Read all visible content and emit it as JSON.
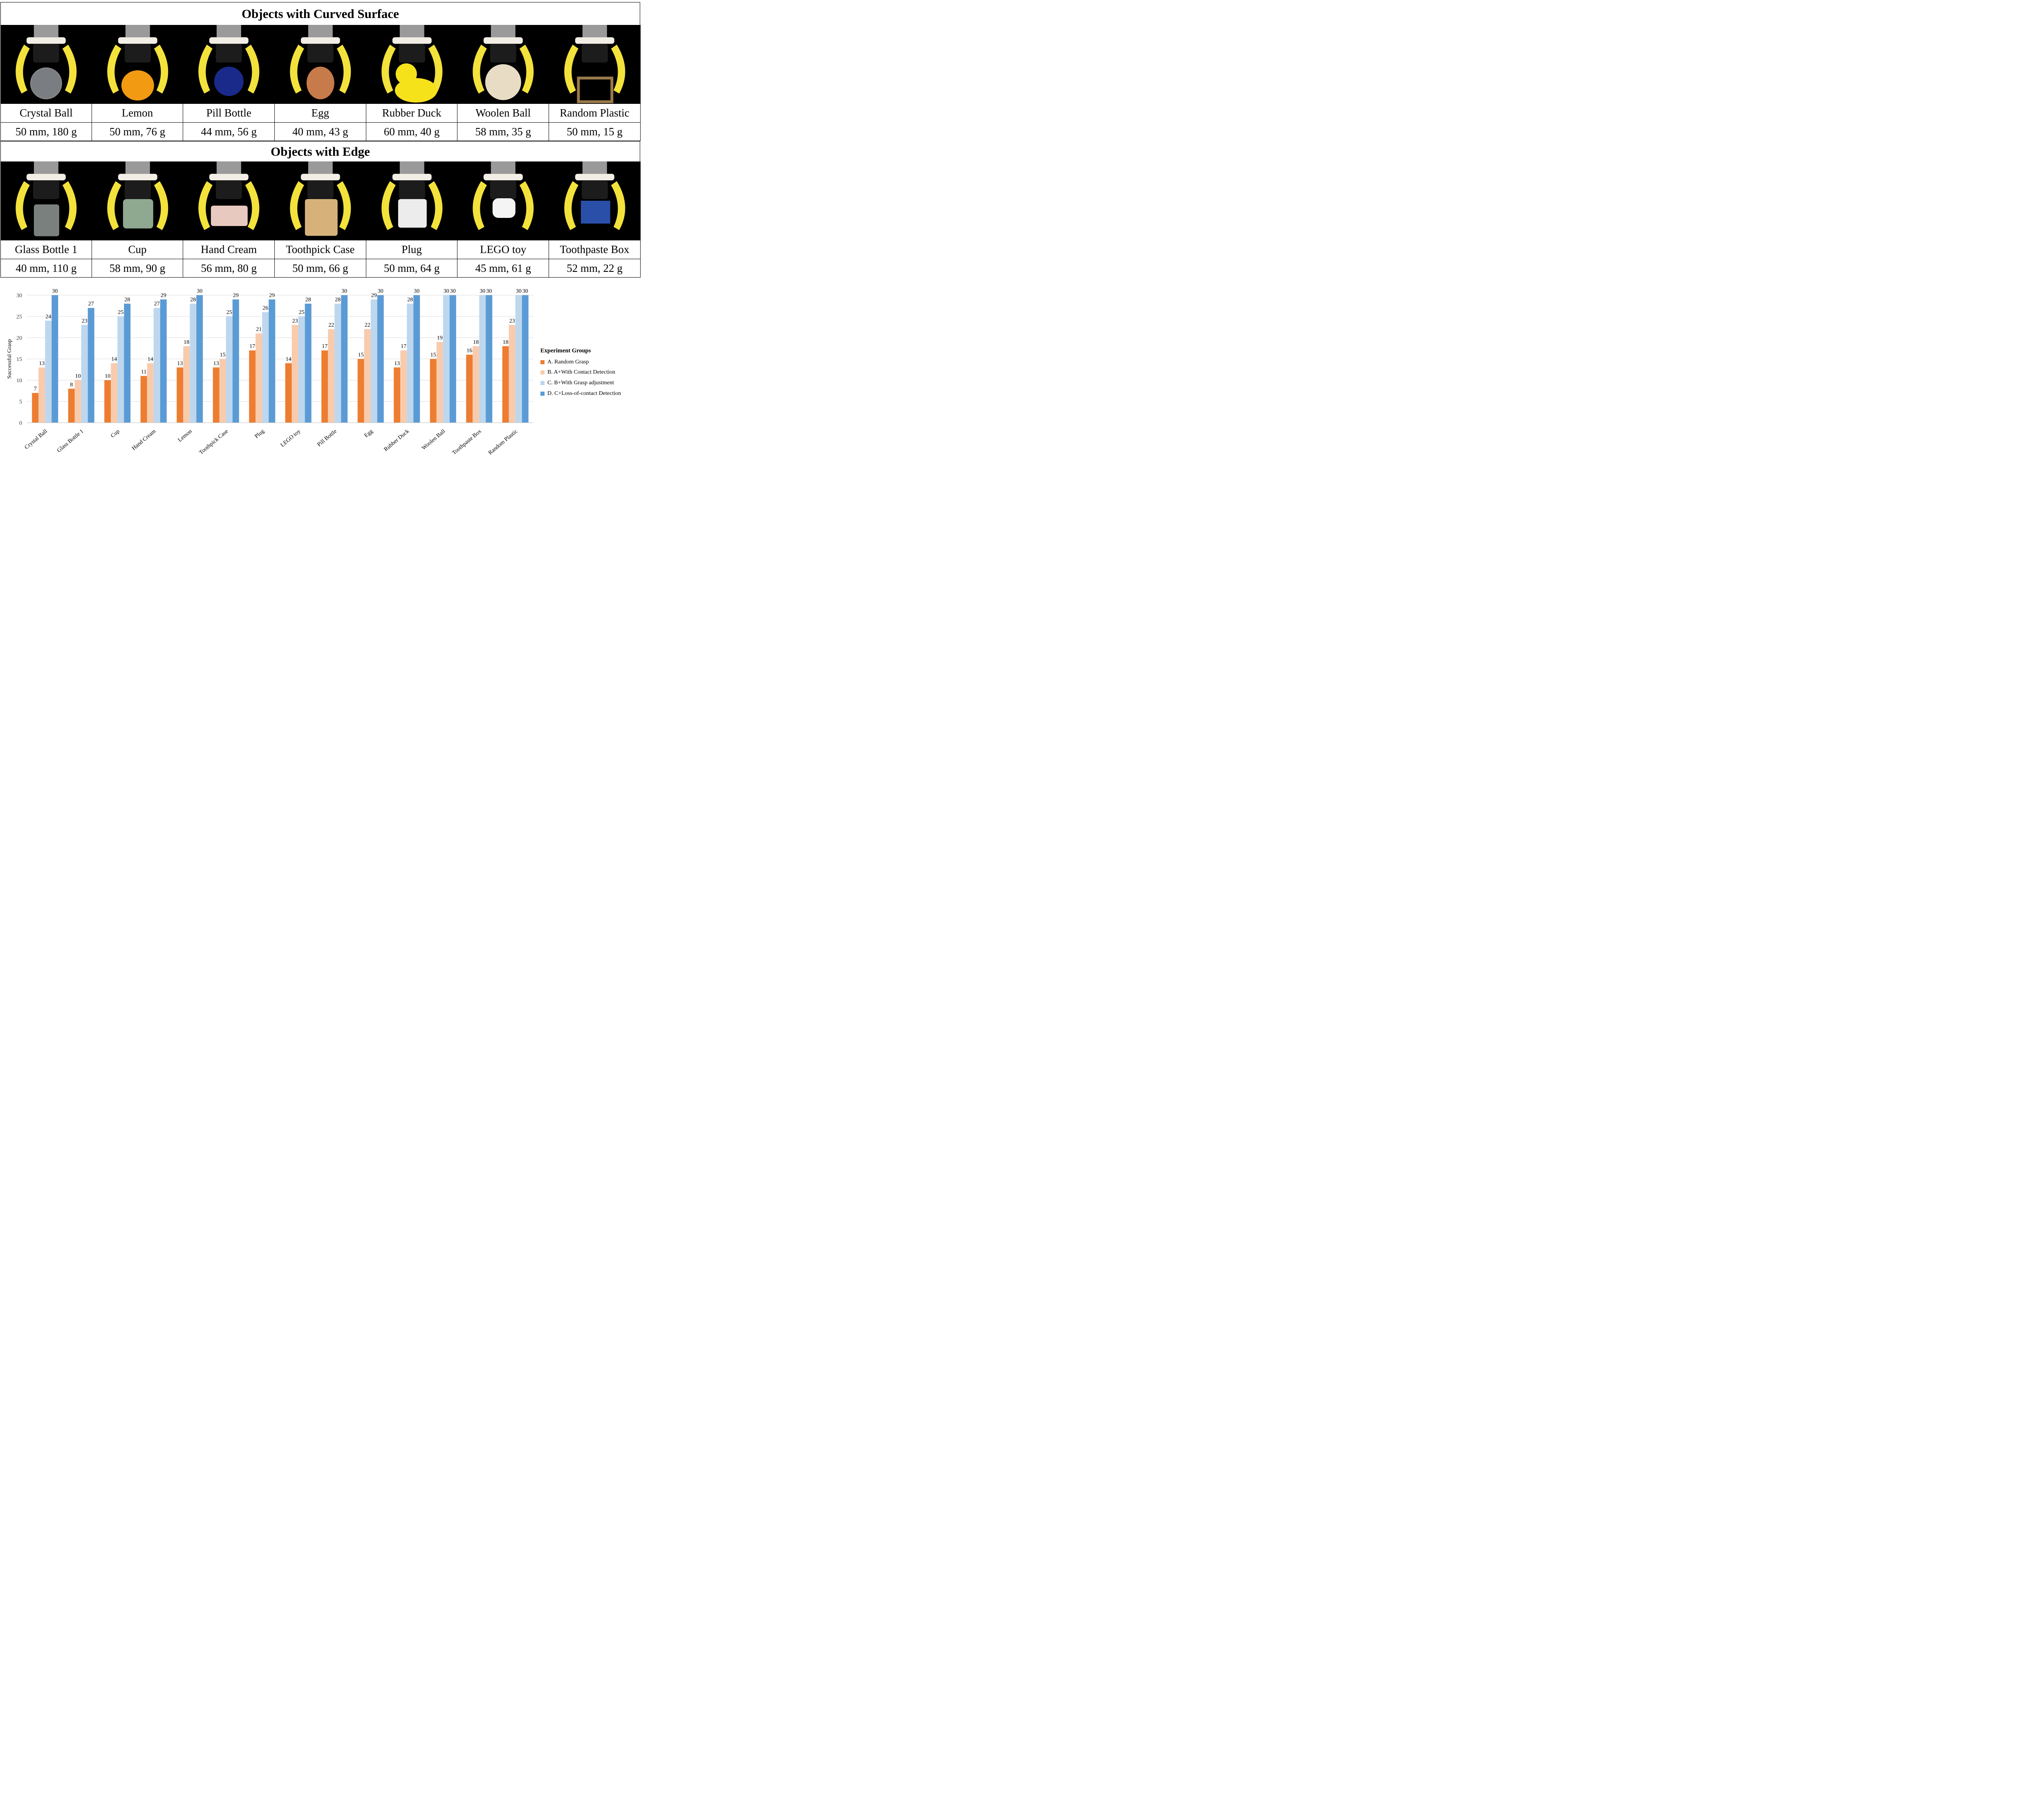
{
  "sections": {
    "curved": {
      "title": "Objects with Curved Surface",
      "objects": [
        {
          "name": "Crystal Ball",
          "spec": "50 mm, 180 g",
          "icon": "crystal-ball",
          "color": "#dfe6ee"
        },
        {
          "name": "Lemon",
          "spec": "50 mm, 76 g",
          "icon": "lemon",
          "color": "#f29a12"
        },
        {
          "name": "Pill Bottle",
          "spec": "44 mm, 56 g",
          "icon": "pill-bottle",
          "color": "#1a2a8a"
        },
        {
          "name": "Egg",
          "spec": "40 mm, 43 g",
          "icon": "egg",
          "color": "#c77a4a"
        },
        {
          "name": "Rubber Duck",
          "spec": "60 mm, 40 g",
          "icon": "rubber-duck",
          "color": "#f6e21a"
        },
        {
          "name": "Woolen Ball",
          "spec": "58 mm, 35 g",
          "icon": "woolen-ball",
          "color": "#e8dcc4"
        },
        {
          "name": "Random Plastic",
          "spec": "50 mm, 15 g",
          "icon": "random-plastic",
          "color": "#9a7a4a"
        }
      ]
    },
    "edge": {
      "title": "Objects with Edge",
      "objects": [
        {
          "name": "Glass Bottle 1",
          "spec": "40 mm, 110 g",
          "icon": "glass-bottle",
          "color": "#c9d6d2"
        },
        {
          "name": "Cup",
          "spec": "58 mm, 90 g",
          "icon": "cup",
          "color": "#8fa890"
        },
        {
          "name": "Hand Cream",
          "spec": "56 mm, 80 g",
          "icon": "hand-cream",
          "color": "#e8c9c0"
        },
        {
          "name": "Toothpick Case",
          "spec": "50 mm, 66 g",
          "icon": "toothpick-case",
          "color": "#d6b27a"
        },
        {
          "name": "Plug",
          "spec": "50 mm, 64 g",
          "icon": "plug",
          "color": "#ececec"
        },
        {
          "name": "LEGO toy",
          "spec": "45 mm, 61 g",
          "icon": "lego-toy",
          "color": "#f4f4f4"
        },
        {
          "name": "Toothpaste Box",
          "spec": "52 mm, 22 g",
          "icon": "toothpaste-box",
          "color": "#2a4fa8"
        }
      ]
    }
  },
  "gripper_colors": {
    "finger": "#f3e23c",
    "body": "#f2eee6",
    "hub": "#1c1c1c",
    "motor": "#9a9a9a"
  },
  "chart_data": {
    "type": "bar",
    "title": "",
    "xlabel": "",
    "ylabel": "Successful Grasp",
    "ylim": [
      0,
      30
    ],
    "yticks": [
      0,
      5,
      10,
      15,
      20,
      25,
      30
    ],
    "grid": true,
    "legend_title": "Experiment Groups",
    "legend_position": "right",
    "categories": [
      "Crystal Ball",
      "Glass Bottle 1",
      "Cup",
      "Hand Cream",
      "Lemon",
      "Toothpick Case",
      "Plug",
      "LEGO toy",
      "Pill Bottle",
      "Egg",
      "Rubber Duck",
      "Woolen Ball",
      "Toothpaste Box",
      "Random Plastic"
    ],
    "series": [
      {
        "name": "A. Random Grasp",
        "color": "#ed7d31",
        "values": [
          7,
          8,
          10,
          11,
          13,
          13,
          17,
          14,
          17,
          15,
          13,
          15,
          16,
          18
        ]
      },
      {
        "name": "B. A+With Contact Detection",
        "color": "#f8cbad",
        "values": [
          13,
          10,
          14,
          14,
          18,
          15,
          21,
          23,
          22,
          22,
          17,
          19,
          18,
          23
        ]
      },
      {
        "name": "C. B+With Grasp adjustment",
        "color": "#bdd7ee",
        "values": [
          24,
          23,
          25,
          27,
          28,
          25,
          26,
          25,
          28,
          29,
          28,
          30,
          30,
          30
        ]
      },
      {
        "name": "D.  C+Loss-of-contact Detection",
        "color": "#5b9bd5",
        "values": [
          30,
          27,
          28,
          29,
          30,
          29,
          29,
          28,
          30,
          30,
          30,
          30,
          30,
          30
        ]
      }
    ]
  }
}
